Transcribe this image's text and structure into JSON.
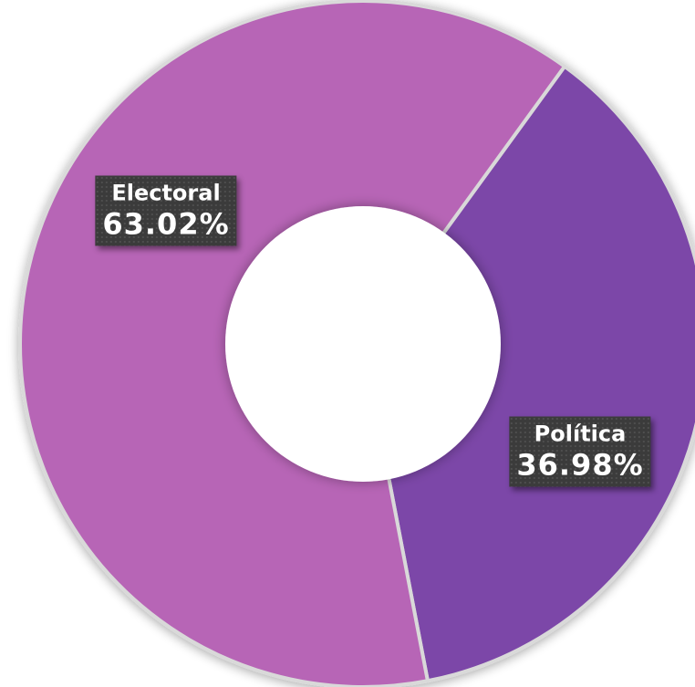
{
  "chart_data": {
    "type": "pie",
    "donut": true,
    "title": "",
    "legend": "none",
    "slices": [
      {
        "name": "Política",
        "value": 36.98,
        "label": "36.98%",
        "color": "#7b46a8"
      },
      {
        "name": "Electoral",
        "value": 63.02,
        "label": "63.02%",
        "color": "#b765b6"
      }
    ]
  }
}
